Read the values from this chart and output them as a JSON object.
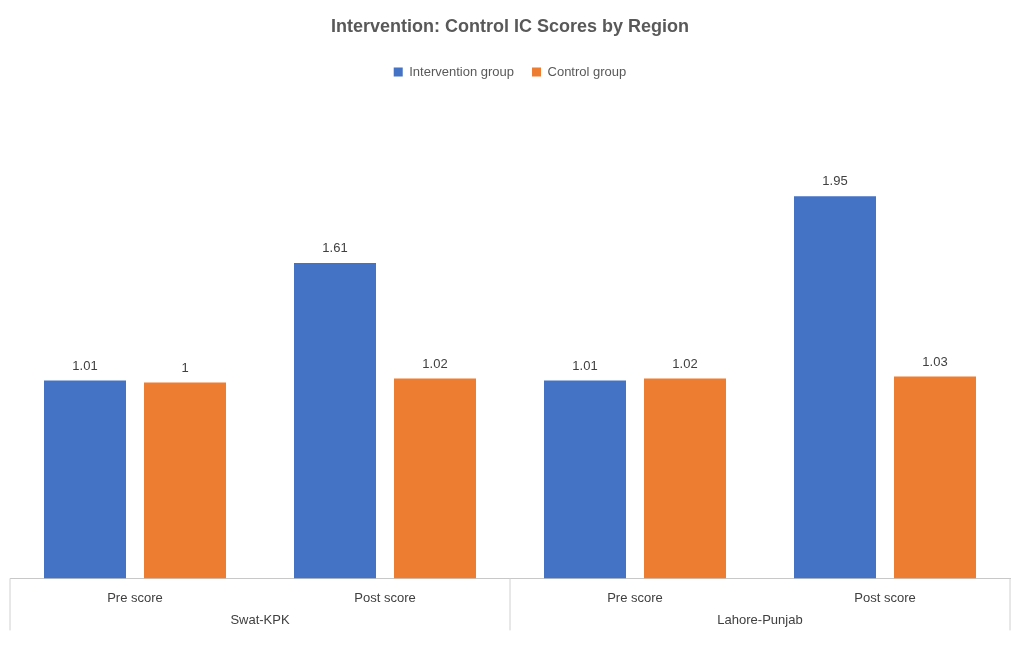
{
  "chart_data": {
    "type": "bar",
    "title": "Intervention: Control IC Scores by Region",
    "categories": [
      "Pre score",
      "Post score",
      "Pre score",
      "Post score"
    ],
    "series": [
      {
        "name": "Intervention group",
        "color": "#4472c4",
        "values": [
          1.01,
          1.61,
          1.01,
          1.95
        ]
      },
      {
        "name": "Control group",
        "color": "#ed7d31",
        "values": [
          1,
          1.02,
          1.02,
          1.03
        ]
      }
    ],
    "annotations": [
      "Swat-KPK",
      "Lahore-Punjab"
    ],
    "data_labels": true,
    "legend": "top",
    "grid": false
  }
}
